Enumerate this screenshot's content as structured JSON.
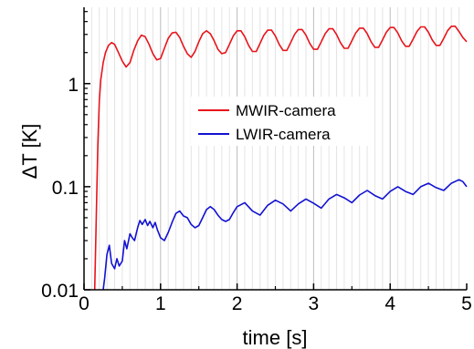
{
  "chart_data": {
    "type": "line",
    "xlabel": "time [s]",
    "ylabel": "ΔT [K]",
    "xlim": [
      0,
      5
    ],
    "ylim": [
      0.01,
      5.5
    ],
    "yscale": "log",
    "x_ticks": [
      0,
      1,
      2,
      3,
      4,
      5
    ],
    "y_ticks": [
      0.01,
      0.1,
      1
    ],
    "y_tick_labels": [
      "0.01",
      "0.1",
      "1"
    ],
    "grid": "vertical",
    "legend_position": "center",
    "series": [
      {
        "name": "MWIR-camera",
        "color": "#e8141b",
        "x": [
          0.14,
          0.16,
          0.18,
          0.2,
          0.22,
          0.25,
          0.28,
          0.32,
          0.36,
          0.4,
          0.45,
          0.5,
          0.55,
          0.6,
          0.65,
          0.7,
          0.75,
          0.8,
          0.85,
          0.9,
          0.95,
          1.0,
          1.05,
          1.1,
          1.15,
          1.2,
          1.25,
          1.3,
          1.35,
          1.4,
          1.45,
          1.5,
          1.55,
          1.6,
          1.65,
          1.7,
          1.75,
          1.8,
          1.85,
          1.9,
          1.95,
          2.0,
          2.05,
          2.1,
          2.15,
          2.2,
          2.25,
          2.3,
          2.35,
          2.4,
          2.45,
          2.5,
          2.55,
          2.6,
          2.65,
          2.7,
          2.75,
          2.8,
          2.85,
          2.9,
          2.95,
          3.0,
          3.05,
          3.1,
          3.15,
          3.2,
          3.25,
          3.3,
          3.35,
          3.4,
          3.45,
          3.5,
          3.55,
          3.6,
          3.65,
          3.7,
          3.75,
          3.8,
          3.85,
          3.9,
          3.95,
          4.0,
          4.05,
          4.1,
          4.15,
          4.2,
          4.25,
          4.3,
          4.35,
          4.4,
          4.45,
          4.5,
          4.55,
          4.6,
          4.65,
          4.7,
          4.75,
          4.8,
          4.85,
          4.9,
          4.95,
          5.0
        ],
        "y": [
          0.01,
          0.05,
          0.25,
          0.7,
          1.1,
          1.6,
          2.0,
          2.35,
          2.5,
          2.4,
          2.0,
          1.65,
          1.45,
          1.6,
          2.1,
          2.6,
          2.95,
          2.85,
          2.4,
          1.95,
          1.7,
          1.75,
          2.2,
          2.75,
          3.1,
          3.15,
          2.8,
          2.3,
          1.95,
          1.8,
          2.05,
          2.55,
          3.05,
          3.25,
          3.05,
          2.6,
          2.15,
          1.95,
          2.0,
          2.4,
          2.9,
          3.25,
          3.25,
          2.85,
          2.35,
          2.05,
          2.05,
          2.45,
          2.95,
          3.3,
          3.3,
          2.9,
          2.4,
          2.1,
          2.1,
          2.5,
          3.0,
          3.35,
          3.35,
          2.95,
          2.45,
          2.15,
          2.15,
          2.55,
          3.05,
          3.4,
          3.4,
          3.0,
          2.5,
          2.2,
          2.2,
          2.6,
          3.1,
          3.45,
          3.45,
          3.05,
          2.55,
          2.25,
          2.25,
          2.65,
          3.15,
          3.5,
          3.5,
          3.1,
          2.6,
          2.3,
          2.3,
          2.7,
          3.2,
          3.55,
          3.55,
          3.15,
          2.65,
          2.35,
          2.35,
          2.75,
          3.25,
          3.6,
          3.6,
          3.2,
          2.8,
          2.55
        ]
      },
      {
        "name": "LWIR-camera",
        "color": "#1212d2",
        "x": [
          0.25,
          0.27,
          0.3,
          0.33,
          0.36,
          0.4,
          0.43,
          0.46,
          0.5,
          0.53,
          0.56,
          0.6,
          0.63,
          0.66,
          0.7,
          0.73,
          0.76,
          0.8,
          0.83,
          0.86,
          0.9,
          0.93,
          0.96,
          1.0,
          1.05,
          1.1,
          1.15,
          1.2,
          1.25,
          1.3,
          1.35,
          1.4,
          1.45,
          1.5,
          1.55,
          1.6,
          1.65,
          1.7,
          1.75,
          1.8,
          1.85,
          1.9,
          1.95,
          2.0,
          2.1,
          2.2,
          2.3,
          2.4,
          2.5,
          2.6,
          2.7,
          2.8,
          2.9,
          3.0,
          3.1,
          3.2,
          3.3,
          3.4,
          3.5,
          3.6,
          3.7,
          3.8,
          3.9,
          4.0,
          4.1,
          4.2,
          4.3,
          4.4,
          4.5,
          4.6,
          4.7,
          4.8,
          4.9,
          4.95,
          5.0
        ],
        "y": [
          0.01,
          0.013,
          0.022,
          0.027,
          0.018,
          0.016,
          0.02,
          0.017,
          0.019,
          0.03,
          0.025,
          0.035,
          0.032,
          0.03,
          0.04,
          0.047,
          0.043,
          0.048,
          0.042,
          0.046,
          0.04,
          0.045,
          0.038,
          0.032,
          0.03,
          0.036,
          0.045,
          0.055,
          0.058,
          0.052,
          0.05,
          0.043,
          0.04,
          0.042,
          0.05,
          0.06,
          0.064,
          0.06,
          0.053,
          0.048,
          0.046,
          0.048,
          0.056,
          0.064,
          0.07,
          0.058,
          0.053,
          0.066,
          0.074,
          0.068,
          0.058,
          0.068,
          0.076,
          0.069,
          0.062,
          0.076,
          0.084,
          0.078,
          0.07,
          0.083,
          0.092,
          0.082,
          0.076,
          0.09,
          0.1,
          0.09,
          0.084,
          0.1,
          0.108,
          0.098,
          0.092,
          0.108,
          0.117,
          0.112,
          0.1
        ]
      }
    ]
  }
}
